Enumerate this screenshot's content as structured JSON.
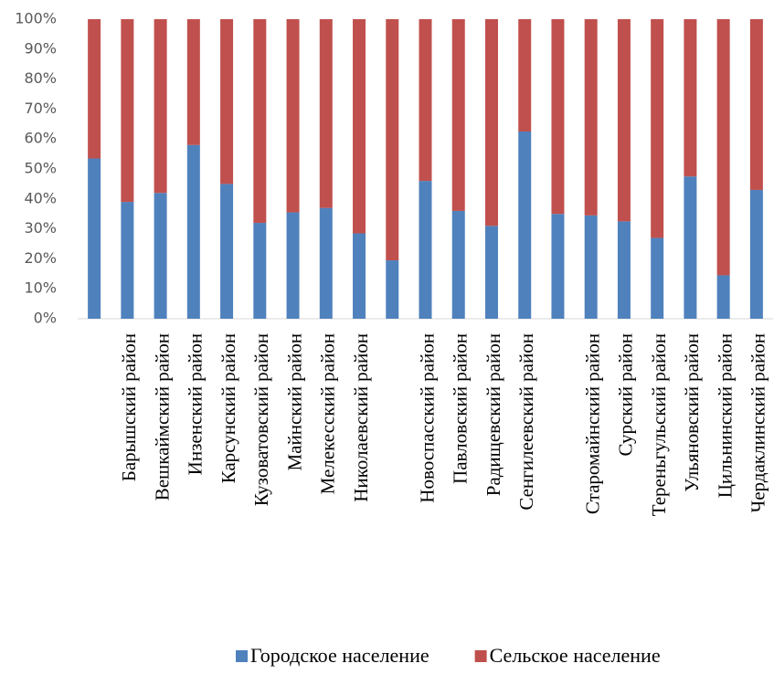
{
  "chart_data": {
    "type": "stacked_bar_100",
    "categories": [
      null,
      "Барышский район",
      "Вешкаймский район",
      "Инзенский район",
      "Карсунский район",
      "Кузоватовский район",
      "Майнский район",
      "Мелекесский район",
      "Николаевский район",
      null,
      "Новоспасский район",
      "Павловский район",
      "Радищевский район",
      "Сенгилеевский район",
      null,
      "Старомайнский район",
      "Сурский район",
      "Тереньгульский район",
      "Ульяновский район",
      "Цильнинский район",
      "Чердаклинский район"
    ],
    "series": [
      {
        "name": "Городское население",
        "color": "#4f81bd",
        "values": [
          53.5,
          39,
          42,
          58,
          45,
          32,
          35.5,
          37,
          28.5,
          19.5,
          46,
          36,
          31,
          62.5,
          35,
          34.5,
          32.5,
          27,
          47.5,
          14.5,
          43
        ]
      },
      {
        "name": "Сельское население",
        "color": "#c0504d",
        "values": [
          46.5,
          61,
          58,
          42,
          55,
          68,
          64.5,
          63,
          71.5,
          80.5,
          54,
          64,
          69,
          37.5,
          65,
          65.5,
          67.5,
          73,
          52.5,
          85.5,
          57
        ]
      }
    ],
    "ylim": [
      0,
      100
    ],
    "yticks": [
      {
        "value": 0,
        "label": "0%"
      },
      {
        "value": 10,
        "label": "10%"
      },
      {
        "value": 20,
        "label": "20%"
      },
      {
        "value": 30,
        "label": "30%"
      },
      {
        "value": 40,
        "label": "40%"
      },
      {
        "value": 50,
        "label": "50%"
      },
      {
        "value": 60,
        "label": "60%"
      },
      {
        "value": 70,
        "label": "70%"
      },
      {
        "value": 80,
        "label": "80%"
      },
      {
        "value": 90,
        "label": "90%"
      },
      {
        "value": 100,
        "label": "100%"
      }
    ],
    "legend": "bottom"
  }
}
